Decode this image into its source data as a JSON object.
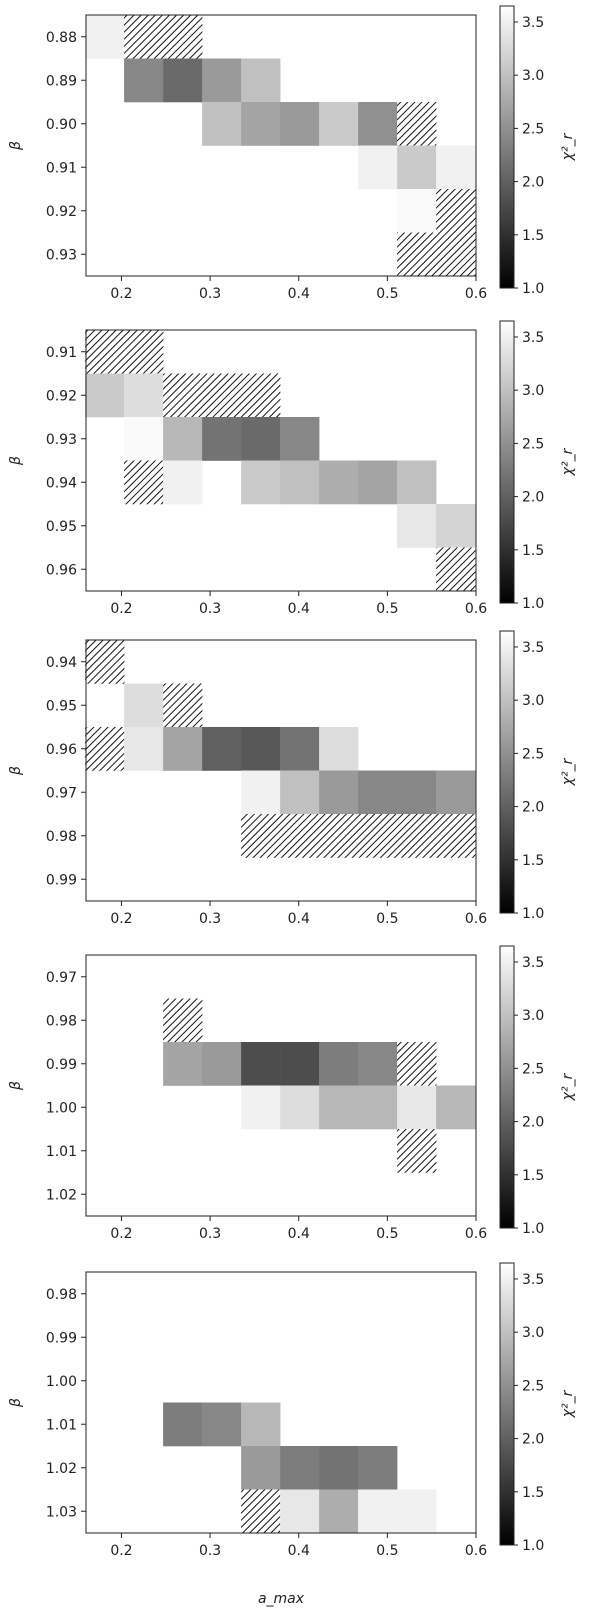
{
  "chart_data": {
    "type": "heatmap",
    "figure_xlabel": "a_max",
    "x_tick_labels": [
      "0.2",
      "0.3",
      "0.4",
      "0.5",
      "0.6"
    ],
    "xlim": [
      0.16,
      0.6
    ],
    "x_bin_centers": [
      0.181,
      0.225,
      0.269,
      0.313,
      0.357,
      0.401,
      0.445,
      0.489,
      0.533,
      0.577
    ],
    "colorbar": {
      "label": "χ²_r",
      "range": [
        1.0,
        3.65
      ],
      "ticks": [
        "1.0",
        "1.5",
        "2.0",
        "2.5",
        "3.0",
        "3.5"
      ],
      "colormap": "gray"
    },
    "panels": [
      {
        "ylabel": "β",
        "y_tick_labels": [
          "0.88",
          "0.89",
          "0.90",
          "0.91",
          "0.92",
          "0.93"
        ],
        "y_bin_centers": [
          0.88,
          0.89,
          0.9,
          0.91,
          0.92,
          0.93
        ],
        "cells": [
          {
            "x": 0.181,
            "y": 0.88,
            "chi2": 3.5
          },
          {
            "x": 0.225,
            "y": 0.88,
            "hatched": true
          },
          {
            "x": 0.269,
            "y": 0.88,
            "hatched": true
          },
          {
            "x": 0.225,
            "y": 0.89,
            "chi2": 2.4
          },
          {
            "x": 0.269,
            "y": 0.89,
            "chi2": 2.1
          },
          {
            "x": 0.313,
            "y": 0.89,
            "chi2": 2.6
          },
          {
            "x": 0.357,
            "y": 0.89,
            "chi2": 3.0
          },
          {
            "x": 0.313,
            "y": 0.9,
            "chi2": 3.0
          },
          {
            "x": 0.357,
            "y": 0.9,
            "chi2": 2.7
          },
          {
            "x": 0.401,
            "y": 0.9,
            "chi2": 2.6
          },
          {
            "x": 0.445,
            "y": 0.9,
            "chi2": 3.1
          },
          {
            "x": 0.489,
            "y": 0.9,
            "chi2": 2.5
          },
          {
            "x": 0.533,
            "y": 0.9,
            "hatched": true
          },
          {
            "x": 0.489,
            "y": 0.91,
            "chi2": 3.5
          },
          {
            "x": 0.533,
            "y": 0.91,
            "chi2": 3.1
          },
          {
            "x": 0.577,
            "y": 0.91,
            "chi2": 3.5
          },
          {
            "x": 0.533,
            "y": 0.92,
            "chi2": 3.6
          },
          {
            "x": 0.577,
            "y": 0.92,
            "hatched": true
          },
          {
            "x": 0.533,
            "y": 0.93,
            "hatched": true
          },
          {
            "x": 0.577,
            "y": 0.93,
            "hatched": true
          }
        ]
      },
      {
        "ylabel": "β",
        "y_tick_labels": [
          "0.91",
          "0.92",
          "0.93",
          "0.94",
          "0.95",
          "0.96"
        ],
        "y_bin_centers": [
          0.91,
          0.92,
          0.93,
          0.94,
          0.95,
          0.96
        ],
        "cells": [
          {
            "x": 0.181,
            "y": 0.91,
            "hatched": true
          },
          {
            "x": 0.225,
            "y": 0.91,
            "hatched": true
          },
          {
            "x": 0.181,
            "y": 0.92,
            "chi2": 3.1
          },
          {
            "x": 0.225,
            "y": 0.92,
            "chi2": 3.3
          },
          {
            "x": 0.269,
            "y": 0.92,
            "hatched": true
          },
          {
            "x": 0.313,
            "y": 0.92,
            "hatched": true
          },
          {
            "x": 0.357,
            "y": 0.92,
            "hatched": true
          },
          {
            "x": 0.225,
            "y": 0.93,
            "chi2": 3.6
          },
          {
            "x": 0.269,
            "y": 0.93,
            "chi2": 2.9
          },
          {
            "x": 0.313,
            "y": 0.93,
            "chi2": 2.2
          },
          {
            "x": 0.357,
            "y": 0.93,
            "chi2": 2.1
          },
          {
            "x": 0.401,
            "y": 0.93,
            "chi2": 2.4
          },
          {
            "x": 0.225,
            "y": 0.94,
            "hatched": true
          },
          {
            "x": 0.269,
            "y": 0.94,
            "chi2": 3.5
          },
          {
            "x": 0.357,
            "y": 0.94,
            "chi2": 3.1
          },
          {
            "x": 0.401,
            "y": 0.94,
            "chi2": 3.0
          },
          {
            "x": 0.445,
            "y": 0.94,
            "chi2": 2.8
          },
          {
            "x": 0.489,
            "y": 0.94,
            "chi2": 2.7
          },
          {
            "x": 0.533,
            "y": 0.94,
            "chi2": 3.0
          },
          {
            "x": 0.533,
            "y": 0.95,
            "chi2": 3.4
          },
          {
            "x": 0.577,
            "y": 0.95,
            "chi2": 3.2
          },
          {
            "x": 0.577,
            "y": 0.96,
            "hatched": true
          }
        ]
      },
      {
        "ylabel": "β",
        "y_tick_labels": [
          "0.94",
          "0.95",
          "0.96",
          "0.97",
          "0.98",
          "0.99"
        ],
        "y_bin_centers": [
          0.94,
          0.95,
          0.96,
          0.97,
          0.98,
          0.99
        ],
        "cells": [
          {
            "x": 0.181,
            "y": 0.94,
            "hatched": true
          },
          {
            "x": 0.225,
            "y": 0.95,
            "chi2": 3.3
          },
          {
            "x": 0.269,
            "y": 0.95,
            "hatched": true
          },
          {
            "x": 0.181,
            "y": 0.96,
            "hatched": true
          },
          {
            "x": 0.225,
            "y": 0.96,
            "chi2": 3.4
          },
          {
            "x": 0.269,
            "y": 0.96,
            "chi2": 2.7
          },
          {
            "x": 0.313,
            "y": 0.96,
            "chi2": 2.0
          },
          {
            "x": 0.357,
            "y": 0.96,
            "chi2": 1.9
          },
          {
            "x": 0.401,
            "y": 0.96,
            "chi2": 2.2
          },
          {
            "x": 0.445,
            "y": 0.96,
            "chi2": 3.3
          },
          {
            "x": 0.357,
            "y": 0.97,
            "chi2": 3.5
          },
          {
            "x": 0.401,
            "y": 0.97,
            "chi2": 3.0
          },
          {
            "x": 0.445,
            "y": 0.97,
            "chi2": 2.6
          },
          {
            "x": 0.489,
            "y": 0.97,
            "chi2": 2.4
          },
          {
            "x": 0.533,
            "y": 0.97,
            "chi2": 2.4
          },
          {
            "x": 0.577,
            "y": 0.97,
            "chi2": 2.6
          },
          {
            "x": 0.357,
            "y": 0.98,
            "hatched": true
          },
          {
            "x": 0.401,
            "y": 0.98,
            "hatched": true
          },
          {
            "x": 0.445,
            "y": 0.98,
            "hatched": true
          },
          {
            "x": 0.489,
            "y": 0.98,
            "hatched": true
          },
          {
            "x": 0.533,
            "y": 0.98,
            "hatched": true
          },
          {
            "x": 0.577,
            "y": 0.98,
            "hatched": true
          }
        ]
      },
      {
        "ylabel": "β",
        "y_tick_labels": [
          "0.97",
          "0.98",
          "0.99",
          "1.00",
          "1.01",
          "1.02"
        ],
        "y_bin_centers": [
          0.97,
          0.98,
          0.99,
          1.0,
          1.01,
          1.02
        ],
        "cells": [
          {
            "x": 0.269,
            "y": 0.98,
            "hatched": true
          },
          {
            "x": 0.269,
            "y": 0.99,
            "chi2": 2.7
          },
          {
            "x": 0.313,
            "y": 0.99,
            "chi2": 2.6
          },
          {
            "x": 0.357,
            "y": 0.99,
            "chi2": 1.8
          },
          {
            "x": 0.401,
            "y": 0.99,
            "chi2": 1.8
          },
          {
            "x": 0.445,
            "y": 0.99,
            "chi2": 2.3
          },
          {
            "x": 0.489,
            "y": 0.99,
            "chi2": 2.4
          },
          {
            "x": 0.533,
            "y": 0.99,
            "hatched": true
          },
          {
            "x": 0.357,
            "y": 1.0,
            "chi2": 3.5
          },
          {
            "x": 0.401,
            "y": 1.0,
            "chi2": 3.3
          },
          {
            "x": 0.445,
            "y": 1.0,
            "chi2": 2.9
          },
          {
            "x": 0.489,
            "y": 1.0,
            "chi2": 2.9
          },
          {
            "x": 0.533,
            "y": 1.0,
            "chi2": 3.4
          },
          {
            "x": 0.577,
            "y": 1.0,
            "chi2": 2.9
          },
          {
            "x": 0.533,
            "y": 1.01,
            "hatched": true
          }
        ]
      },
      {
        "ylabel": "β",
        "y_tick_labels": [
          "0.98",
          "0.99",
          "1.00",
          "1.01",
          "1.02",
          "1.03"
        ],
        "y_bin_centers": [
          0.98,
          0.99,
          1.0,
          1.01,
          1.02,
          1.03
        ],
        "cells": [
          {
            "x": 0.269,
            "y": 1.01,
            "chi2": 2.3
          },
          {
            "x": 0.313,
            "y": 1.01,
            "chi2": 2.4
          },
          {
            "x": 0.357,
            "y": 1.01,
            "chi2": 2.9
          },
          {
            "x": 0.357,
            "y": 1.02,
            "chi2": 2.6
          },
          {
            "x": 0.401,
            "y": 1.02,
            "chi2": 2.3
          },
          {
            "x": 0.445,
            "y": 1.02,
            "chi2": 2.2
          },
          {
            "x": 0.489,
            "y": 1.02,
            "chi2": 2.3
          },
          {
            "x": 0.357,
            "y": 1.03,
            "hatched": true
          },
          {
            "x": 0.401,
            "y": 1.03,
            "chi2": 3.4
          },
          {
            "x": 0.445,
            "y": 1.03,
            "chi2": 2.8
          },
          {
            "x": 0.489,
            "y": 1.03,
            "chi2": 3.5
          },
          {
            "x": 0.533,
            "y": 1.03,
            "chi2": 3.5
          }
        ]
      }
    ]
  }
}
